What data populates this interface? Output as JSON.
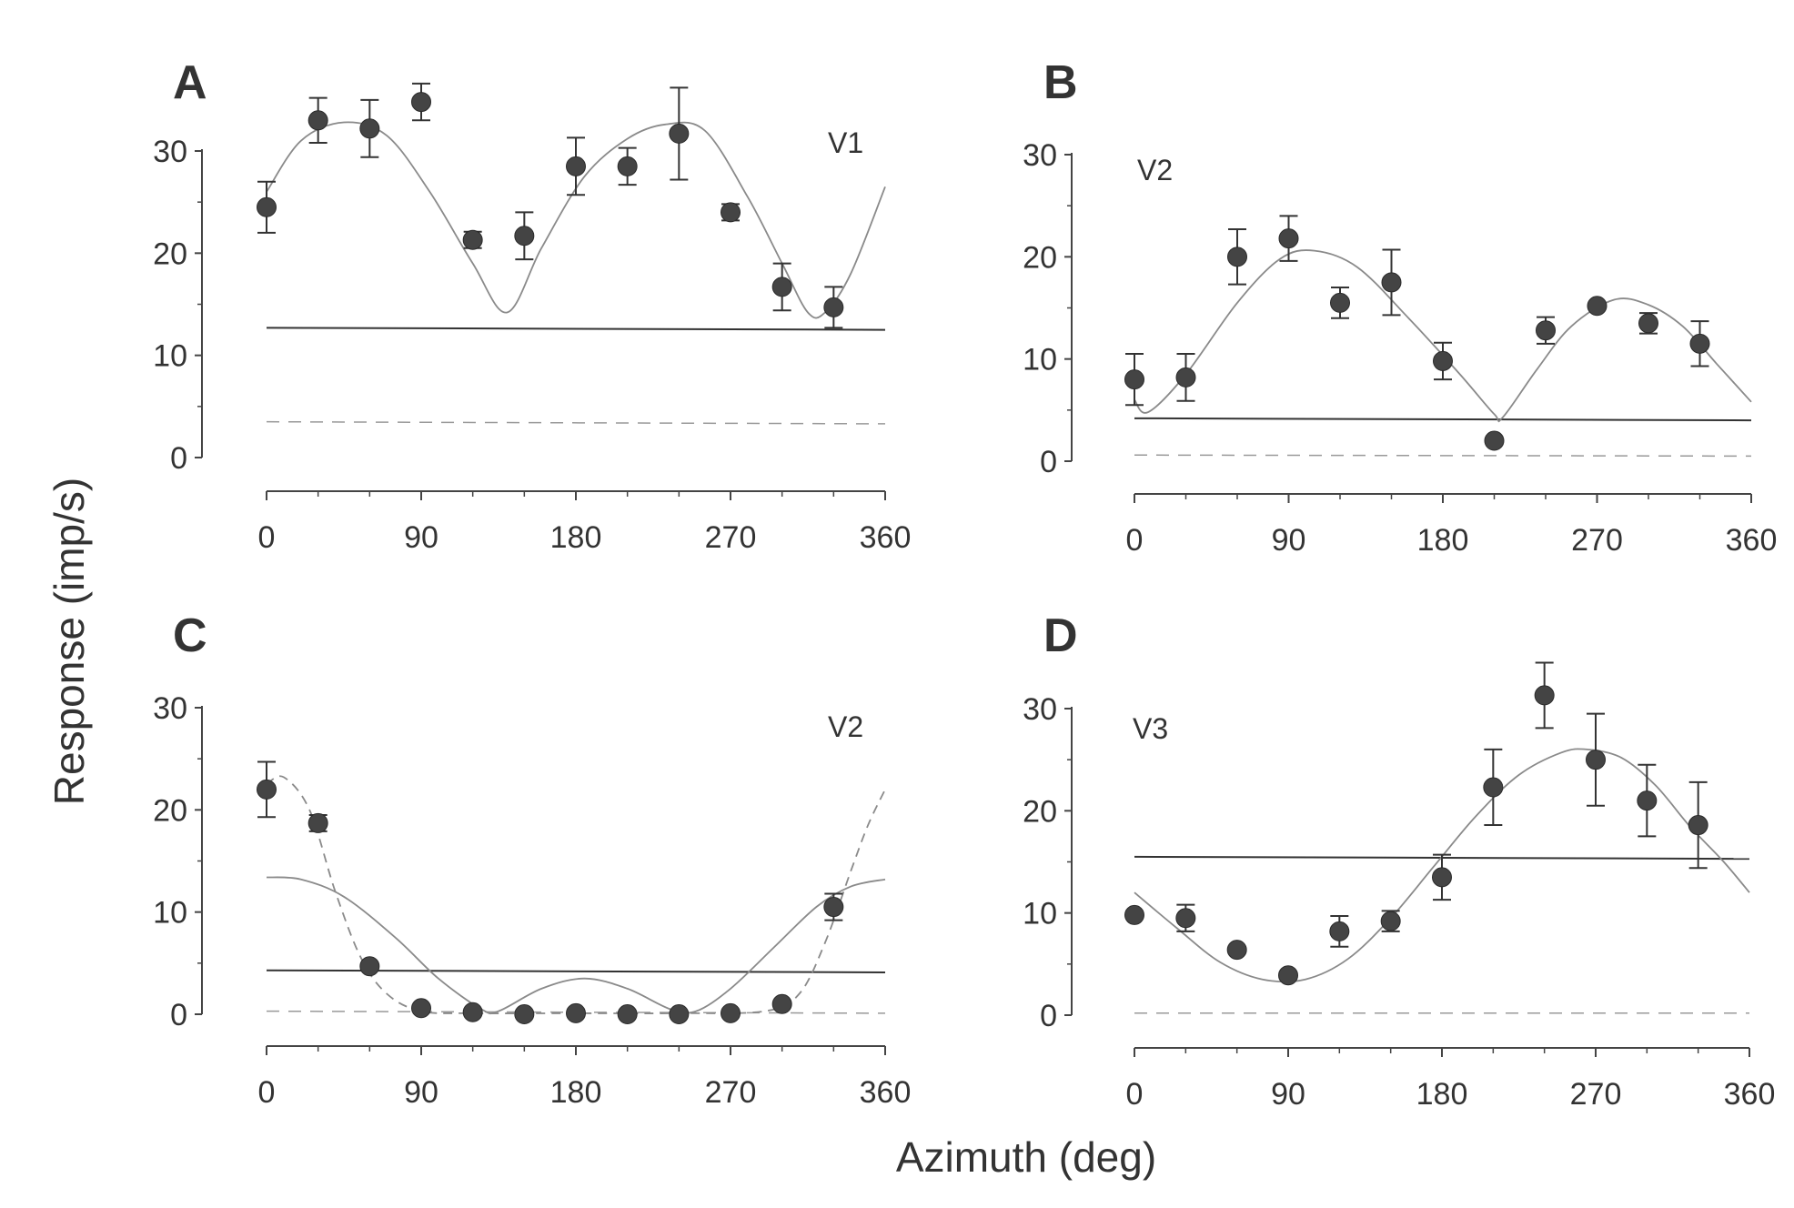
{
  "figure": {
    "ylabel": "Response (imp/s)",
    "xlabel": "Azimuth (deg)"
  },
  "chart_data": [
    {
      "type": "scatter",
      "panel": "A",
      "area": "V1",
      "xticks": [
        0,
        90,
        180,
        270,
        360
      ],
      "yticks": [
        0,
        10,
        20,
        30
      ],
      "xlim": [
        0,
        360
      ],
      "ylim": [
        0,
        30
      ],
      "points": [
        {
          "x": 0,
          "y": 24.5,
          "err": 2.5
        },
        {
          "x": 30,
          "y": 33.0,
          "err": 2.2
        },
        {
          "x": 60,
          "y": 32.2,
          "err": 2.8
        },
        {
          "x": 90,
          "y": 34.8,
          "err": 1.8
        },
        {
          "x": 120,
          "y": 21.3,
          "err": 0.8
        },
        {
          "x": 150,
          "y": 21.7,
          "err": 2.3
        },
        {
          "x": 180,
          "y": 28.5,
          "err": 2.8
        },
        {
          "x": 210,
          "y": 28.5,
          "err": 1.8
        },
        {
          "x": 240,
          "y": 31.7,
          "err": 4.5
        },
        {
          "x": 270,
          "y": 24.0,
          "err": 0.8
        },
        {
          "x": 300,
          "y": 16.7,
          "err": 2.3
        },
        {
          "x": 330,
          "y": 14.7,
          "err": 2.0
        }
      ],
      "fit": {
        "style": "solid",
        "points": [
          [
            0,
            26
          ],
          [
            20,
            31
          ],
          [
            45,
            32.8
          ],
          [
            70,
            31.5
          ],
          [
            95,
            26
          ],
          [
            120,
            19
          ],
          [
            140,
            14.2
          ],
          [
            160,
            20.5
          ],
          [
            185,
            27.5
          ],
          [
            210,
            31.2
          ],
          [
            232,
            32.6
          ],
          [
            255,
            32
          ],
          [
            280,
            25.5
          ],
          [
            300,
            19
          ],
          [
            315,
            14.2
          ],
          [
            325,
            14.2
          ],
          [
            340,
            18
          ],
          [
            360,
            26.5
          ]
        ]
      },
      "spontaneous_line": {
        "style": "solid",
        "y_start": 12.7,
        "y_end": 12.5
      },
      "baseline_line": {
        "style": "dashed",
        "y_start": 3.5,
        "y_end": 3.3
      }
    },
    {
      "type": "scatter",
      "panel": "B",
      "area": "V2",
      "xticks": [
        0,
        90,
        180,
        270,
        360
      ],
      "yticks": [
        0,
        10,
        20,
        30
      ],
      "xlim": [
        0,
        360
      ],
      "ylim": [
        0,
        30
      ],
      "points": [
        {
          "x": 0,
          "y": 8.0,
          "err": 2.5
        },
        {
          "x": 30,
          "y": 8.2,
          "err": 2.3
        },
        {
          "x": 60,
          "y": 20.0,
          "err": 2.7
        },
        {
          "x": 90,
          "y": 21.8,
          "err": 2.2
        },
        {
          "x": 120,
          "y": 15.5,
          "err": 1.5
        },
        {
          "x": 150,
          "y": 17.5,
          "err": 3.2
        },
        {
          "x": 180,
          "y": 9.8,
          "err": 1.8
        },
        {
          "x": 210,
          "y": 2.0,
          "err": 0
        },
        {
          "x": 240,
          "y": 12.8,
          "err": 1.3
        },
        {
          "x": 270,
          "y": 15.2,
          "err": 0
        },
        {
          "x": 300,
          "y": 13.5,
          "err": 1.0
        },
        {
          "x": 330,
          "y": 11.5,
          "err": 2.2
        }
      ],
      "fit": {
        "style": "solid",
        "points": [
          [
            0,
            6
          ],
          [
            8,
            4.8
          ],
          [
            30,
            8.5
          ],
          [
            60,
            15.5
          ],
          [
            85,
            19.8
          ],
          [
            105,
            20.6
          ],
          [
            130,
            19
          ],
          [
            160,
            14
          ],
          [
            190,
            8.5
          ],
          [
            210,
            4.6
          ],
          [
            215,
            4.3
          ],
          [
            235,
            9
          ],
          [
            255,
            13.2
          ],
          [
            280,
            15.8
          ],
          [
            300,
            15.3
          ],
          [
            320,
            13.2
          ],
          [
            340,
            9.5
          ],
          [
            360,
            5.8
          ]
        ]
      },
      "spontaneous_line": {
        "style": "solid",
        "y_start": 4.2,
        "y_end": 4.0
      },
      "baseline_line": {
        "style": "dashed",
        "y_start": 0.6,
        "y_end": 0.5
      }
    },
    {
      "type": "scatter",
      "panel": "C",
      "area": "V2",
      "xticks": [
        0,
        90,
        180,
        270,
        360
      ],
      "yticks": [
        0,
        10,
        20,
        30
      ],
      "xlim": [
        0,
        360
      ],
      "ylim": [
        0,
        30
      ],
      "points": [
        {
          "x": 0,
          "y": 22.0,
          "err": 2.7
        },
        {
          "x": 30,
          "y": 18.7,
          "err": 0.8
        },
        {
          "x": 60,
          "y": 4.7,
          "err": 0
        },
        {
          "x": 90,
          "y": 0.6,
          "err": 0
        },
        {
          "x": 120,
          "y": 0.2,
          "err": 0
        },
        {
          "x": 150,
          "y": 0.0,
          "err": 0
        },
        {
          "x": 180,
          "y": 0.1,
          "err": 0
        },
        {
          "x": 210,
          "y": 0.0,
          "err": 0
        },
        {
          "x": 240,
          "y": 0.0,
          "err": 0
        },
        {
          "x": 270,
          "y": 0.1,
          "err": 0
        },
        {
          "x": 300,
          "y": 1.0,
          "err": 0
        },
        {
          "x": 330,
          "y": 10.5,
          "err": 1.3
        }
      ],
      "fit": {
        "style": "solid",
        "points": [
          [
            0,
            13.4
          ],
          [
            20,
            13.2
          ],
          [
            45,
            11.5
          ],
          [
            75,
            7.5
          ],
          [
            100,
            3.5
          ],
          [
            125,
            0.5
          ],
          [
            135,
            0.3
          ],
          [
            160,
            2.5
          ],
          [
            185,
            3.5
          ],
          [
            210,
            2.5
          ],
          [
            235,
            0.5
          ],
          [
            250,
            0.3
          ],
          [
            270,
            2.5
          ],
          [
            295,
            6.5
          ],
          [
            320,
            10.5
          ],
          [
            340,
            12.5
          ],
          [
            360,
            13.2
          ]
        ]
      },
      "fit2": {
        "style": "dashed",
        "points": [
          [
            0,
            22.5
          ],
          [
            10,
            23.2
          ],
          [
            25,
            20
          ],
          [
            40,
            12
          ],
          [
            55,
            5.5
          ],
          [
            70,
            2
          ],
          [
            90,
            0.3
          ],
          [
            120,
            0.1
          ],
          [
            180,
            0.1
          ],
          [
            240,
            0.1
          ],
          [
            290,
            0.3
          ],
          [
            310,
            2
          ],
          [
            325,
            7
          ],
          [
            340,
            14
          ],
          [
            350,
            18.5
          ],
          [
            360,
            22
          ]
        ]
      },
      "spontaneous_line": {
        "style": "solid",
        "y_start": 4.3,
        "y_end": 4.1
      },
      "baseline_line": {
        "style": "dashed",
        "y_start": 0.3,
        "y_end": 0.1
      }
    },
    {
      "type": "scatter",
      "panel": "D",
      "area": "V3",
      "xticks": [
        0,
        90,
        180,
        270,
        360
      ],
      "yticks": [
        0,
        10,
        20,
        30
      ],
      "xlim": [
        0,
        360
      ],
      "ylim": [
        0,
        30
      ],
      "points": [
        {
          "x": 0,
          "y": 9.8,
          "err": 0
        },
        {
          "x": 30,
          "y": 9.5,
          "err": 1.3
        },
        {
          "x": 60,
          "y": 6.4,
          "err": 0
        },
        {
          "x": 90,
          "y": 3.9,
          "err": 0
        },
        {
          "x": 120,
          "y": 8.2,
          "err": 1.5
        },
        {
          "x": 150,
          "y": 9.2,
          "err": 1.0
        },
        {
          "x": 180,
          "y": 13.5,
          "err": 2.2
        },
        {
          "x": 210,
          "y": 22.3,
          "err": 3.7
        },
        {
          "x": 240,
          "y": 31.3,
          "err": 3.2
        },
        {
          "x": 270,
          "y": 25.0,
          "err": 4.5
        },
        {
          "x": 300,
          "y": 21.0,
          "err": 3.5
        },
        {
          "x": 330,
          "y": 18.6,
          "err": 4.2
        }
      ],
      "fit": {
        "style": "solid",
        "points": [
          [
            0,
            12
          ],
          [
            25,
            8.5
          ],
          [
            50,
            5.2
          ],
          [
            75,
            3.5
          ],
          [
            100,
            3.5
          ],
          [
            125,
            5.5
          ],
          [
            150,
            9.5
          ],
          [
            175,
            14.5
          ],
          [
            200,
            19.5
          ],
          [
            225,
            23.5
          ],
          [
            250,
            25.7
          ],
          [
            265,
            26
          ],
          [
            285,
            25.2
          ],
          [
            305,
            22.5
          ],
          [
            325,
            18.5
          ],
          [
            345,
            15
          ],
          [
            360,
            12
          ]
        ]
      },
      "spontaneous_line": {
        "style": "solid",
        "y_start": 15.5,
        "y_end": 15.3
      },
      "baseline_line": {
        "style": "dashed",
        "y_start": 0.2,
        "y_end": 0.2
      }
    }
  ]
}
